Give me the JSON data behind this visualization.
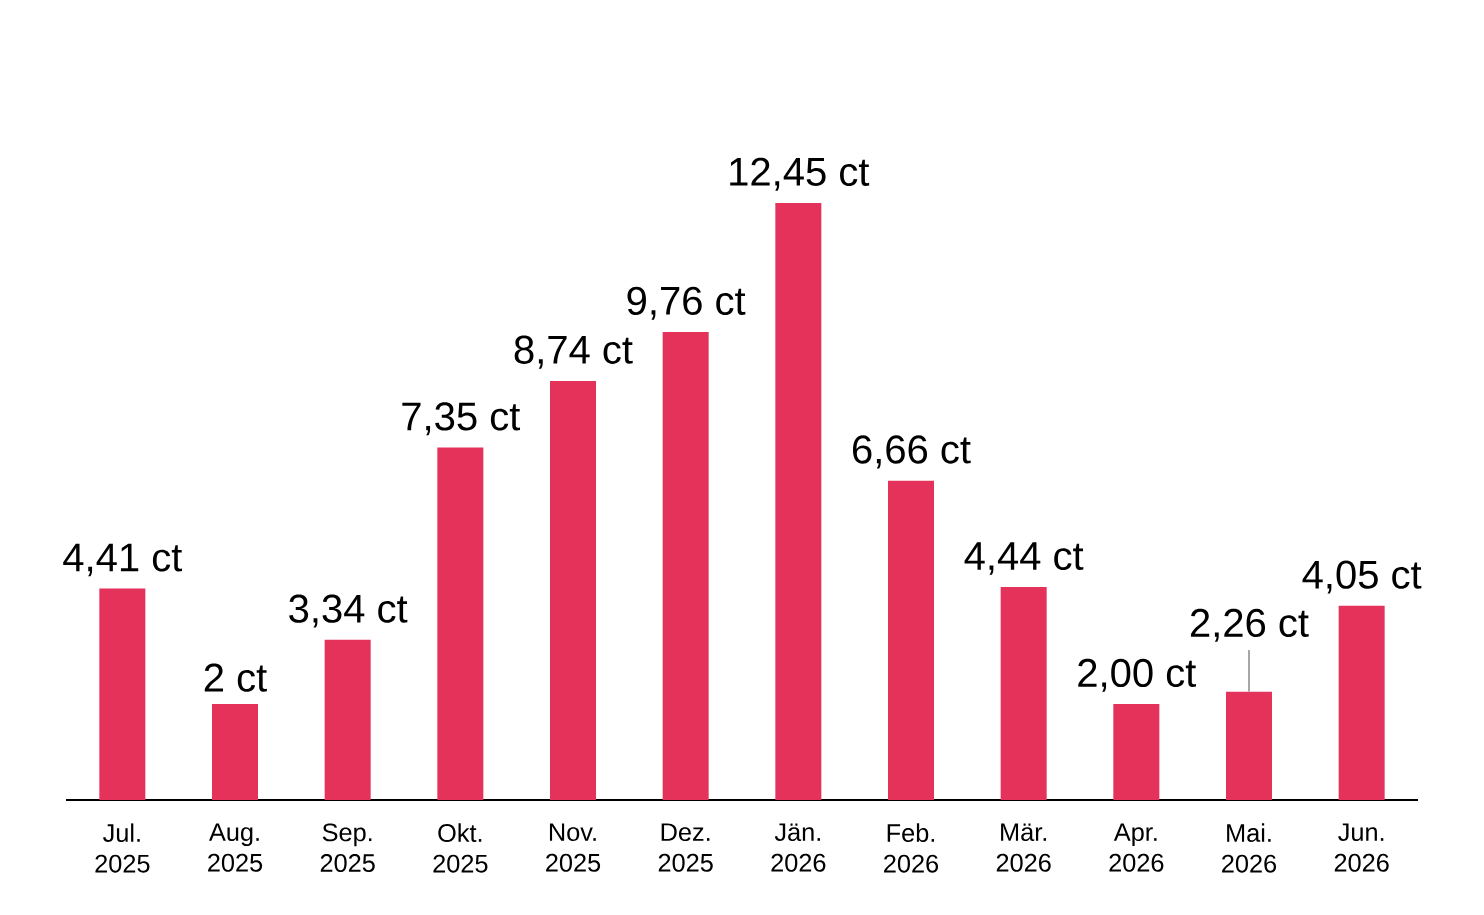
{
  "chart_data": {
    "type": "bar",
    "categories": [
      "Jul. 2025",
      "Aug. 2025",
      "Sep. 2025",
      "Okt. 2025",
      "Nov. 2025",
      "Dez. 2025",
      "Jän. 2026",
      "Feb. 2026",
      "Mär. 2026",
      "Apr. 2026",
      "Mai. 2026",
      "Jun. 2026"
    ],
    "values": [
      4.41,
      2,
      3.34,
      7.35,
      8.74,
      9.76,
      12.45,
      6.66,
      4.44,
      2.0,
      2.26,
      4.05
    ],
    "value_labels": [
      "4,41 ct",
      "2 ct",
      "3,34 ct",
      "7,35 ct",
      "8,74 ct",
      "9,76 ct",
      "12,45 ct",
      "6,66 ct",
      "4,44 ct",
      "2,00 ct",
      "2,26 ct",
      "4,05 ct"
    ],
    "color": "#e5325a"
  }
}
